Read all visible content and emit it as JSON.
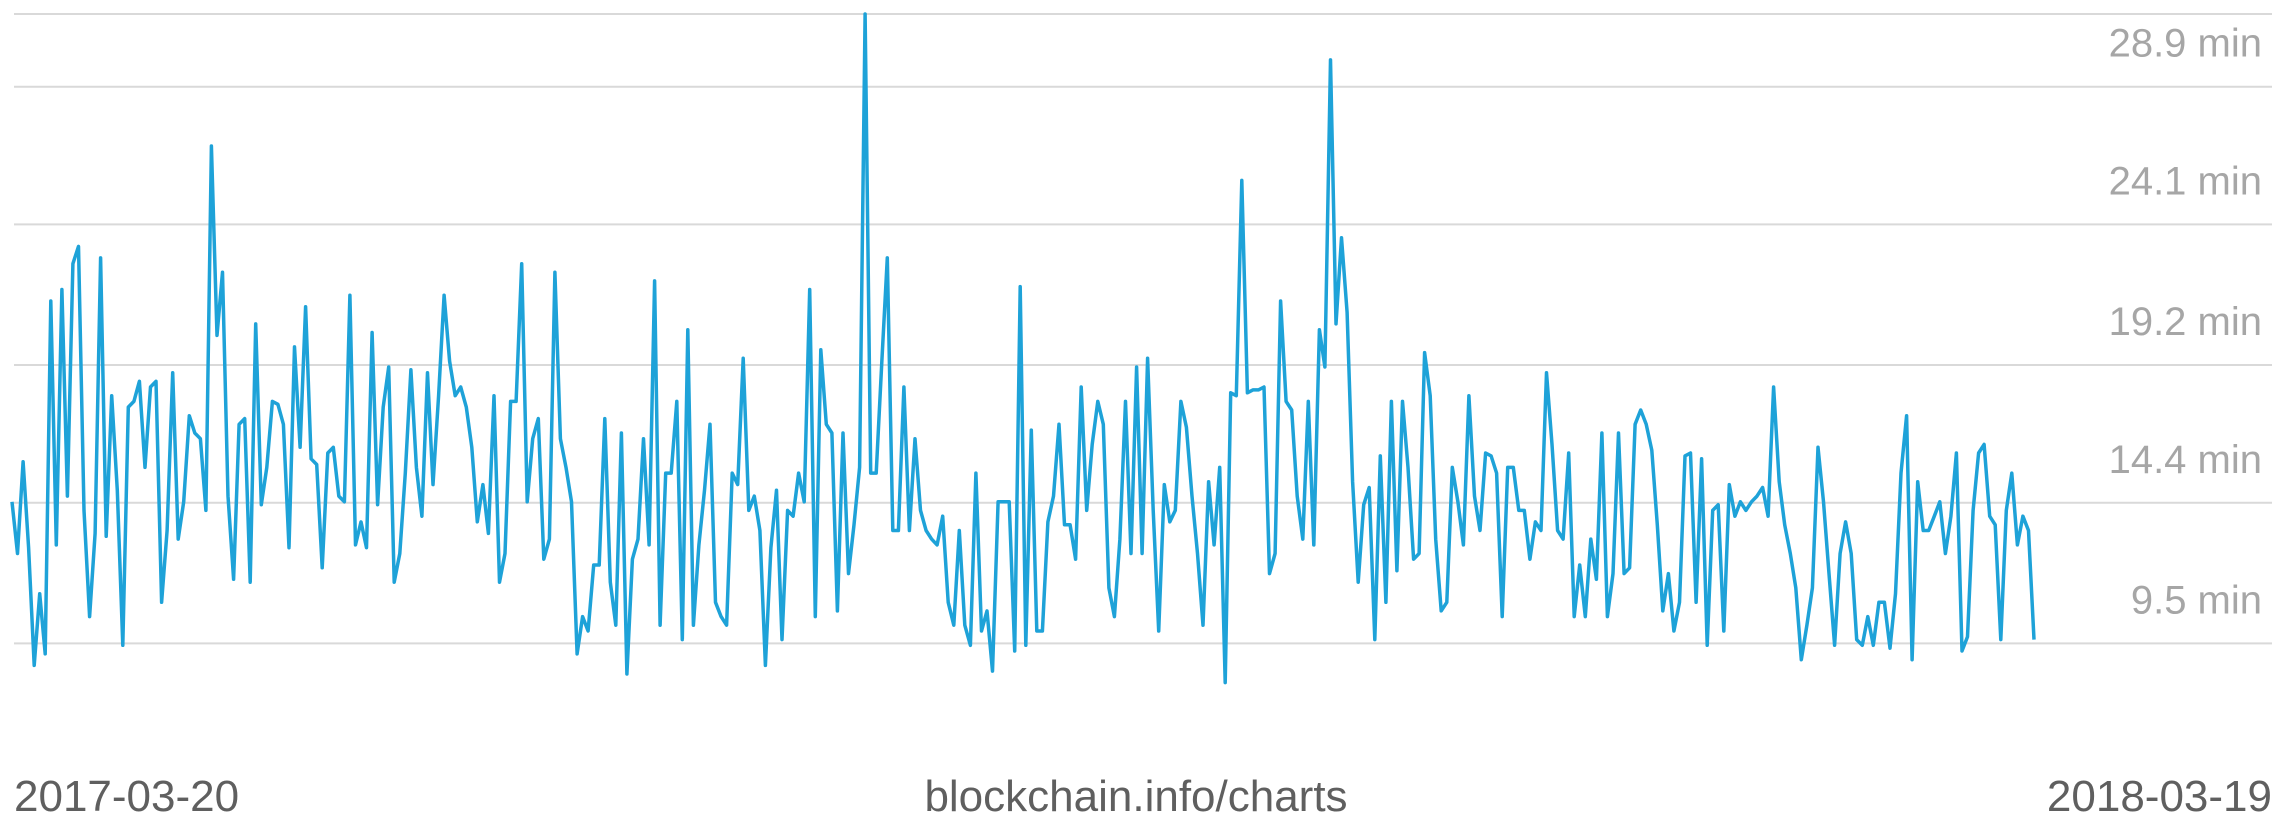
{
  "chart_data": {
    "type": "line",
    "title": "",
    "xlabel": "",
    "ylabel": "",
    "unit": "min",
    "x_range": [
      "2017-03-20",
      "2018-03-19"
    ],
    "ylim": [
      4.6,
      29.9
    ],
    "grid": true,
    "legend": "none",
    "y_ticks": [
      {
        "value": 9.5,
        "label": "9.5 min"
      },
      {
        "value": 14.4,
        "label": "14.4 min"
      },
      {
        "value": 19.2,
        "label": "19.2 min"
      },
      {
        "value": 24.1,
        "label": "24.1 min"
      },
      {
        "value": 28.9,
        "label": "28.9 min"
      }
    ],
    "x_tick_labels": [
      "2017-03-20",
      "2018-03-19"
    ],
    "source_label": "blockchain.info/charts",
    "series": [
      {
        "values": [
          12.9,
          11.1,
          14.3,
          11.3,
          7.2,
          9.7,
          7.6,
          19.9,
          11.4,
          20.3,
          13.1,
          21.2,
          21.8,
          12.6,
          8.9,
          11.8,
          21.4,
          11.7,
          16.6,
          13.3,
          7.9,
          16.2,
          16.4,
          17.1,
          14.1,
          16.9,
          17.1,
          9.4,
          11.9,
          17.4,
          11.6,
          12.9,
          15.9,
          15.3,
          15.1,
          12.6,
          25.3,
          18.7,
          20.9,
          13.1,
          10.2,
          15.6,
          15.8,
          10.1,
          19.1,
          12.8,
          14.1,
          16.4,
          16.3,
          15.6,
          11.3,
          18.3,
          14.8,
          19.7,
          14.4,
          14.2,
          10.6,
          14.6,
          14.8,
          13.1,
          12.9,
          20.1,
          11.4,
          12.2,
          11.3,
          18.8,
          12.8,
          16.2,
          17.6,
          10.1,
          11.1,
          13.9,
          17.5,
          14.1,
          12.4,
          17.4,
          13.5,
          16.6,
          20.1,
          17.8,
          16.6,
          16.9,
          16.2,
          14.8,
          12.2,
          13.5,
          11.8,
          16.6,
          10.1,
          11.1,
          16.4,
          16.4,
          21.2,
          12.9,
          15.1,
          15.8,
          10.9,
          11.6,
          20.9,
          15.1,
          14.1,
          12.9,
          7.6,
          8.9,
          8.4,
          10.7,
          10.7,
          15.8,
          10.1,
          8.6,
          15.3,
          6.9,
          10.9,
          11.6,
          15.1,
          11.4,
          20.6,
          8.6,
          13.9,
          13.9,
          16.4,
          8.1,
          18.9,
          8.6,
          11.4,
          13.3,
          15.6,
          9.4,
          8.9,
          8.6,
          13.9,
          13.5,
          17.9,
          12.6,
          13.1,
          11.9,
          7.2,
          11.3,
          13.3,
          8.1,
          12.6,
          12.4,
          13.9,
          12.9,
          20.3,
          8.9,
          18.2,
          15.6,
          15.3,
          9.1,
          15.3,
          10.4,
          12.1,
          14.1,
          29.9,
          13.9,
          13.9,
          17.7,
          21.4,
          11.9,
          11.9,
          16.9,
          11.9,
          15.1,
          12.6,
          11.9,
          11.6,
          11.4,
          12.4,
          9.4,
          8.6,
          11.9,
          8.6,
          7.9,
          13.9,
          8.4,
          9.1,
          7.0,
          12.9,
          12.9,
          12.9,
          7.7,
          20.4,
          7.9,
          15.4,
          8.4,
          8.4,
          12.2,
          13.1,
          15.6,
          12.1,
          12.1,
          10.9,
          16.9,
          12.6,
          14.9,
          16.4,
          15.6,
          9.9,
          8.9,
          11.6,
          16.4,
          11.1,
          17.6,
          11.1,
          17.9,
          12.6,
          8.4,
          13.5,
          12.2,
          12.6,
          16.4,
          15.5,
          13.1,
          11.1,
          8.6,
          13.6,
          11.4,
          14.1,
          6.6,
          16.7,
          16.6,
          24.1,
          16.7,
          16.8,
          16.8,
          16.9,
          10.4,
          11.1,
          19.9,
          16.4,
          16.1,
          13.1,
          11.6,
          16.4,
          11.4,
          18.9,
          17.6,
          28.3,
          19.1,
          22.1,
          19.5,
          13.6,
          10.1,
          12.8,
          13.4,
          8.1,
          14.5,
          9.4,
          16.4,
          10.5,
          16.4,
          14.1,
          10.9,
          11.1,
          18.1,
          16.6,
          11.6,
          9.1,
          9.4,
          14.1,
          12.9,
          11.4,
          16.6,
          13.1,
          11.9,
          14.6,
          14.5,
          13.9,
          8.9,
          14.1,
          14.1,
          12.6,
          12.6,
          10.9,
          12.2,
          11.9,
          17.4,
          14.9,
          11.9,
          11.6,
          14.6,
          8.9,
          10.7,
          8.9,
          11.6,
          10.2,
          15.3,
          8.9,
          10.4,
          15.3,
          10.4,
          10.6,
          15.6,
          16.1,
          15.6,
          14.7,
          12.1,
          9.1,
          10.4,
          8.4,
          9.4,
          14.5,
          14.6,
          9.4,
          14.4,
          7.9,
          12.6,
          12.8,
          8.4,
          13.5,
          12.4,
          12.9,
          12.6,
          12.9,
          13.1,
          13.4,
          12.4,
          16.9,
          13.6,
          12.1,
          11.1,
          9.9,
          7.4,
          8.6,
          9.9,
          14.8,
          12.9,
          10.4,
          7.9,
          11.1,
          12.2,
          11.1,
          8.1,
          7.9,
          8.9,
          7.9,
          9.4,
          9.4,
          7.8,
          9.7,
          13.9,
          15.9,
          7.4,
          13.6,
          11.9,
          11.9,
          12.4,
          12.9,
          11.1,
          12.4,
          14.6,
          7.7,
          8.2,
          12.6,
          14.6,
          14.9,
          12.4,
          12.1,
          8.1,
          12.6,
          13.9,
          11.4,
          12.4,
          11.9,
          8.1
        ]
      }
    ]
  }
}
